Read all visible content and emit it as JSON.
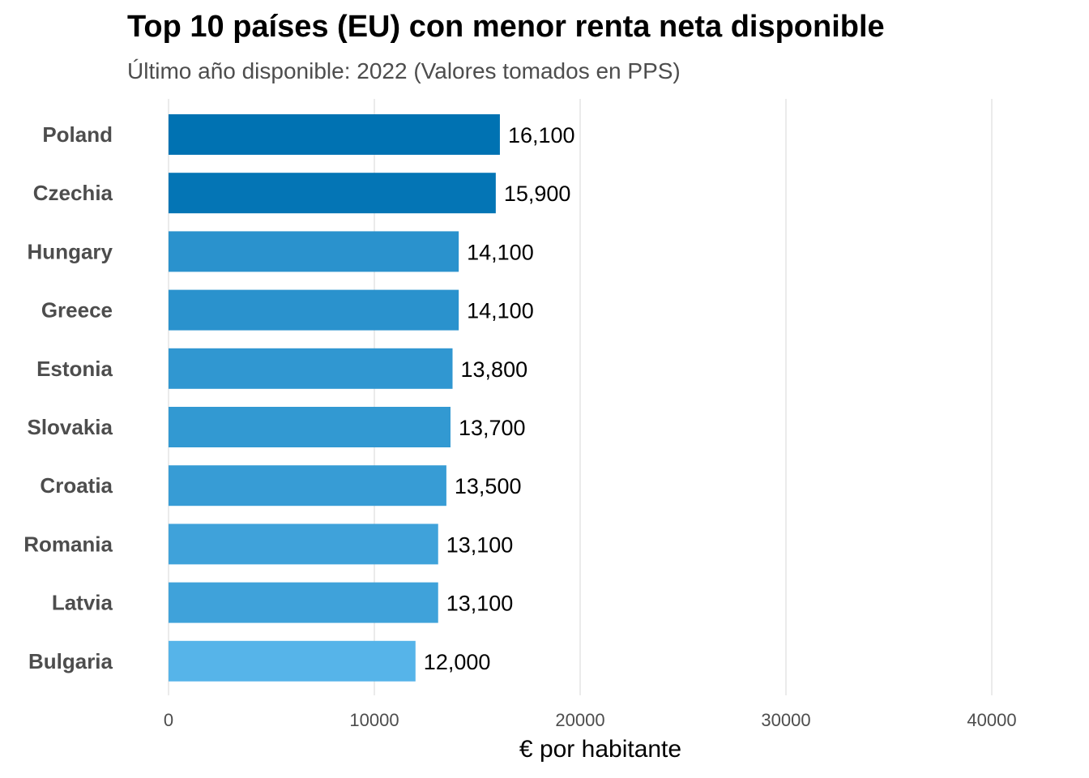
{
  "chart_data": {
    "type": "bar",
    "orientation": "horizontal",
    "title": "Top 10 países (EU) con menor renta neta disponible",
    "subtitle": "Último año disponible:  2022 (Valores tomados en PPS)",
    "xlabel": "€ por habitante",
    "ylabel": "",
    "xlim": [
      0,
      40000
    ],
    "ticks": [
      0,
      10000,
      20000,
      30000,
      40000
    ],
    "tick_labels": [
      "0",
      "10000",
      "20000",
      "30000",
      "40000"
    ],
    "grid": "vertical",
    "legend": "none",
    "categories": [
      "Poland",
      "Czechia",
      "Hungary",
      "Greece",
      "Estonia",
      "Slovakia",
      "Croatia",
      "Romania",
      "Latvia",
      "Bulgaria"
    ],
    "values": [
      16100,
      15900,
      14100,
      14100,
      13800,
      13700,
      13500,
      13100,
      13100,
      12000
    ],
    "value_labels": [
      "16,100",
      "15,900",
      "14,100",
      "14,100",
      "13,800",
      "13,700",
      "13,500",
      "13,100",
      "13,100",
      "12,000"
    ],
    "colors": {
      "low": "#56B4E9",
      "high": "#0072B2",
      "grid": "#ebebeb"
    }
  }
}
